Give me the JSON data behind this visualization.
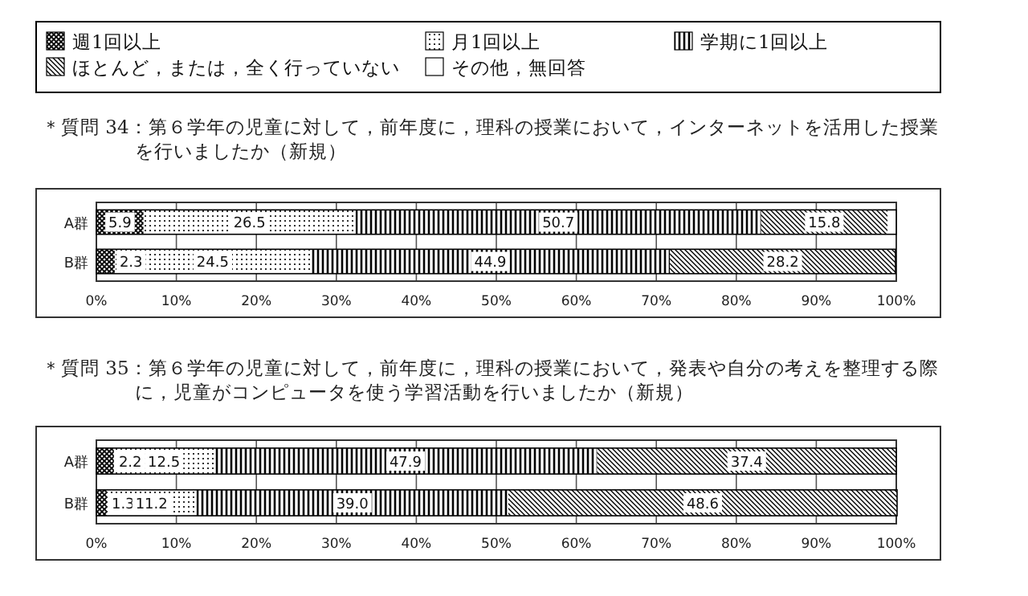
{
  "chart_data": [
    {
      "type": "bar",
      "stacked": true,
      "orientation": "horizontal",
      "title": "＊質問 34：第６学年の児童に対して，前年度に，理科の授業において，インターネットを活用した授業を行いましたか（新規）",
      "categories": [
        "A群",
        "B群"
      ],
      "xlim": [
        0,
        100
      ],
      "xticks": [
        {
          "value": 0,
          "label": "0%"
        },
        {
          "value": 10,
          "label": "10%"
        },
        {
          "value": 20,
          "label": "20%"
        },
        {
          "value": 30,
          "label": "30%"
        },
        {
          "value": 40,
          "label": "40%"
        },
        {
          "value": 50,
          "label": "50%"
        },
        {
          "value": 60,
          "label": "60%"
        },
        {
          "value": 70,
          "label": "70%"
        },
        {
          "value": 80,
          "label": "80%"
        },
        {
          "value": 90,
          "label": "90%"
        },
        {
          "value": 100,
          "label": "100%"
        }
      ],
      "grid": "x",
      "legend": "top",
      "series": [
        {
          "name": "週1回以上",
          "color": "#000000",
          "values": [
            5.9,
            2.3
          ],
          "value_labels": [
            "5.9",
            "2.3"
          ]
        },
        {
          "name": "月1回以上",
          "color": "#000000",
          "values": [
            26.5,
            24.5
          ],
          "value_labels": [
            "26.5",
            "24.5"
          ]
        },
        {
          "name": "学期に1回以上",
          "color": "#000000",
          "values": [
            50.7,
            44.9
          ],
          "value_labels": [
            "50.7",
            "44.9"
          ]
        },
        {
          "name": "ほとんど，または，全く行っていない",
          "color": "#000000",
          "values": [
            15.8,
            28.2
          ],
          "value_labels": [
            "15.8",
            "28.2"
          ]
        },
        {
          "name": "その他，無回答",
          "color": "#ffffff",
          "values": [
            1.1,
            null
          ],
          "value_labels": [
            null,
            null
          ]
        }
      ]
    },
    {
      "type": "bar",
      "stacked": true,
      "orientation": "horizontal",
      "title": "＊質問 35：第６学年の児童に対して，前年度に，理科の授業において，発表や自分の考えを整理する際に，児童がコンピュータを使う学習活動を行いましたか（新規）",
      "categories": [
        "A群",
        "B群"
      ],
      "xlim": [
        0,
        100
      ],
      "xticks": [
        {
          "value": 0,
          "label": "0%"
        },
        {
          "value": 10,
          "label": "10%"
        },
        {
          "value": 20,
          "label": "20%"
        },
        {
          "value": 30,
          "label": "30%"
        },
        {
          "value": 40,
          "label": "40%"
        },
        {
          "value": 50,
          "label": "50%"
        },
        {
          "value": 60,
          "label": "60%"
        },
        {
          "value": 70,
          "label": "70%"
        },
        {
          "value": 80,
          "label": "80%"
        },
        {
          "value": 90,
          "label": "90%"
        },
        {
          "value": 100,
          "label": "100%"
        }
      ],
      "grid": "x",
      "series": [
        {
          "color": "#000000",
          "values": [
            2.2,
            1.3
          ],
          "value_labels": [
            "2.2",
            "1.3"
          ]
        },
        {
          "color": "#000000",
          "values": [
            12.5,
            11.2
          ],
          "value_labels": [
            "12.5",
            "11.2"
          ]
        },
        {
          "color": "#000000",
          "values": [
            47.9,
            39.0
          ],
          "value_labels": [
            "47.9",
            "39.0"
          ]
        },
        {
          "color": "#000000",
          "values": [
            37.4,
            48.6
          ],
          "value_labels": [
            "37.4",
            "48.6"
          ]
        },
        {
          "color": "#ffffff",
          "values": [
            0,
            0
          ],
          "value_labels": [
            null,
            null
          ]
        }
      ]
    }
  ]
}
